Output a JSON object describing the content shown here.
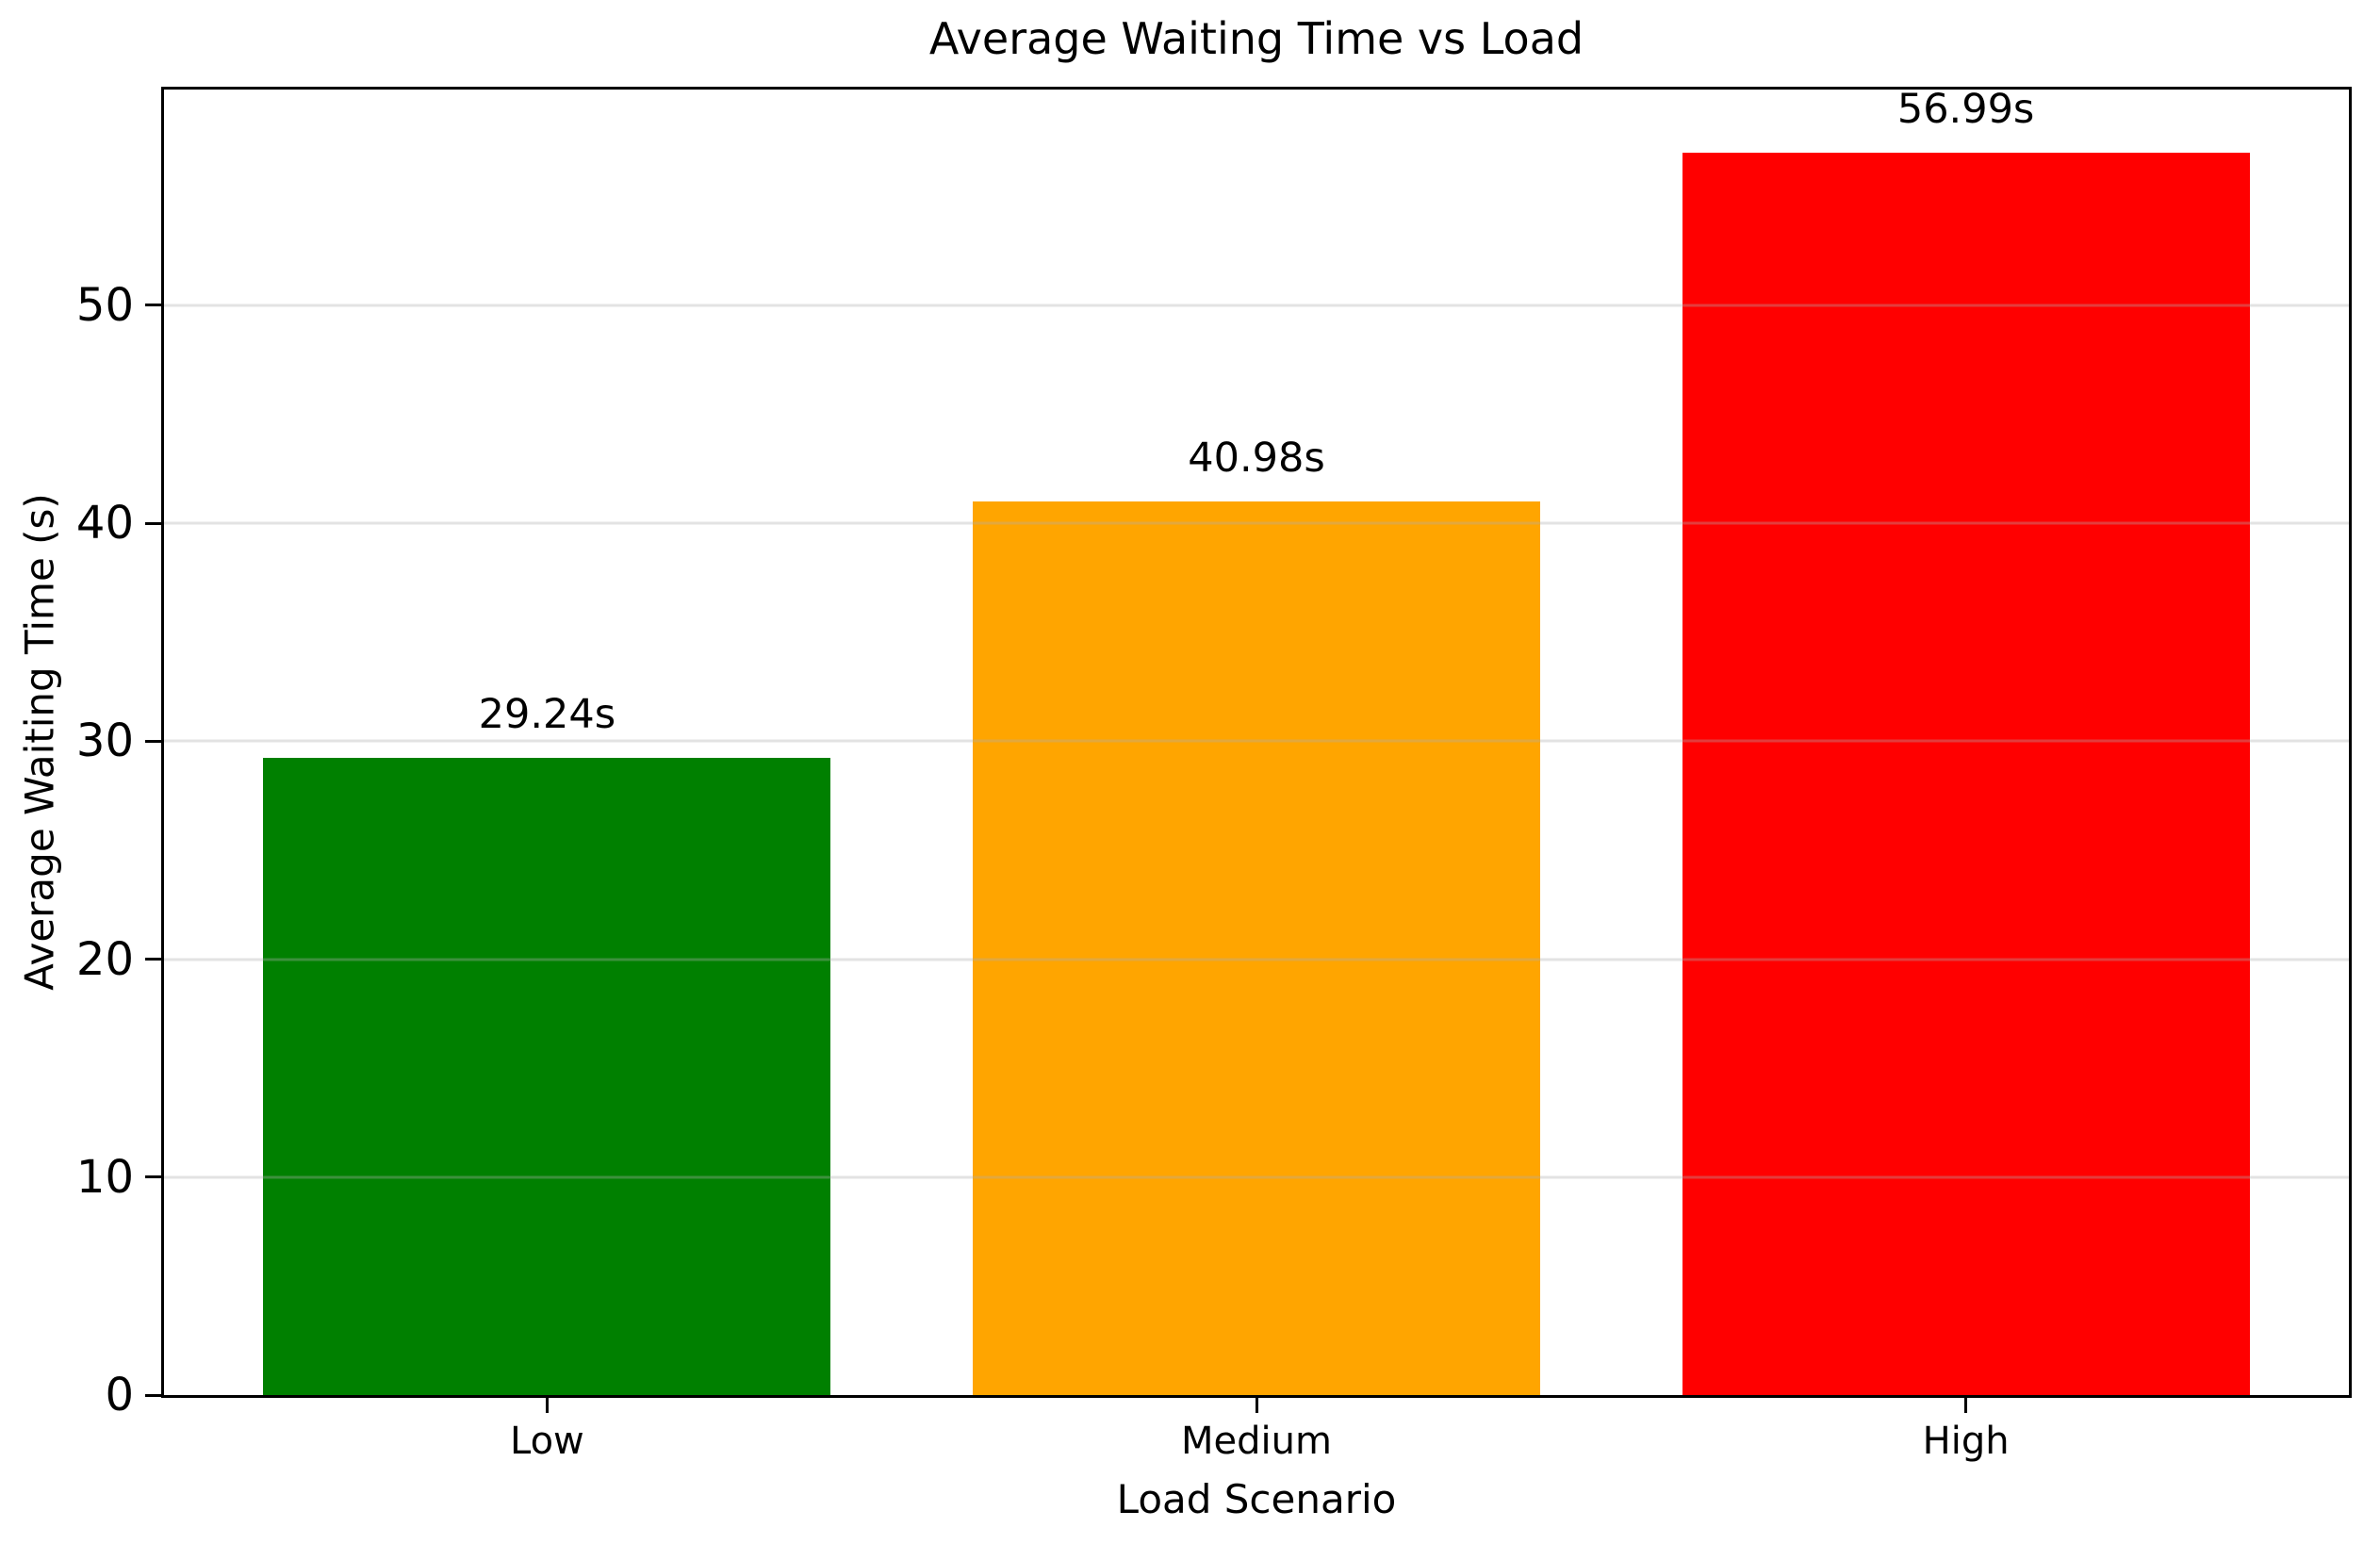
{
  "chart_data": {
    "type": "bar",
    "title": "Average Waiting Time vs Load",
    "xlabel": "Load Scenario",
    "ylabel": "Average Waiting Time (s)",
    "categories": [
      "Low",
      "Medium",
      "High"
    ],
    "values": [
      29.24,
      40.98,
      56.99
    ],
    "value_labels": [
      "29.24s",
      "40.98s",
      "56.99s"
    ],
    "series": [
      {
        "name": "Average Waiting Time",
        "values": [
          29.24,
          40.98,
          56.99
        ]
      }
    ],
    "bar_colors": [
      "#008000",
      "#ffa500",
      "#ff0000"
    ],
    "ylim": [
      0,
      59.9
    ],
    "yticks": [
      "0",
      "10",
      "20",
      "30",
      "40",
      "50"
    ],
    "ytick_values": [
      0,
      10,
      20,
      30,
      40,
      50
    ],
    "grid": "horizontal gridlines at each ytick, light gray, drawn above bars",
    "grid_color": "#b0b0b0",
    "legend_position": "none",
    "background_color": "#ffffff",
    "text_color": "#000000"
  }
}
